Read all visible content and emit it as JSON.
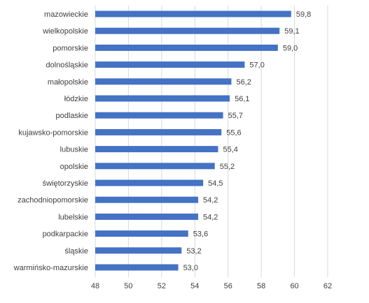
{
  "chart_data": {
    "type": "bar",
    "orientation": "horizontal",
    "title": "",
    "xlabel": "",
    "ylabel": "",
    "categories": [
      "mazowieckie",
      "wielkopolskie",
      "pomorskie",
      "dolnośląskie",
      "małopolskie",
      "łódzkie",
      "podlaskie",
      "kujawsko-pomorskie",
      "lubuskie",
      "opolskie",
      "świętorzyskie",
      "zachodniopomorskie",
      "lubelskie",
      "podkarpackie",
      "śląskie",
      "warmińsko-mazurskie"
    ],
    "values": [
      59.8,
      59.1,
      59.0,
      57.0,
      56.2,
      56.1,
      55.7,
      55.6,
      55.4,
      55.2,
      54.5,
      54.2,
      54.2,
      53.6,
      53.2,
      53.0
    ],
    "value_labels": [
      "59,8",
      "59,1",
      "59,0",
      "57,0",
      "56,2",
      "56,1",
      "55,7",
      "55,6",
      "55,4",
      "55,2",
      "54,5",
      "54,2",
      "54,2",
      "53,6",
      "53,2",
      "53,0"
    ],
    "xlim": [
      48,
      62
    ],
    "x_ticks": [
      "48",
      "50",
      "52",
      "54",
      "56",
      "58",
      "60",
      "62"
    ],
    "grid": true,
    "legend": "none",
    "bar_color": "#4472C4",
    "grid_color": "#d9d9d9",
    "text_color": "#404040"
  }
}
